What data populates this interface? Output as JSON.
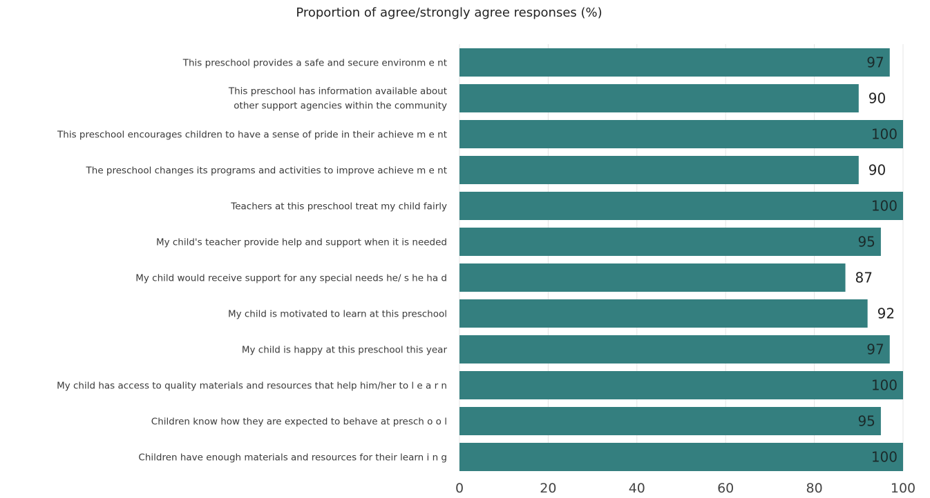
{
  "chart_data": {
    "type": "bar",
    "orientation": "horizontal",
    "title": "Proportion of agree/strongly agree responses (%)",
    "categories": [
      "This preschool provides a safe and secure environm e nt",
      [
        "This preschool has information available about",
        "other support agencies within the community"
      ],
      "This preschool encourages children to have a sense of pride in their achieve m e nt",
      "The preschool changes its programs and activities to improve achieve m e nt",
      "Teachers at this preschool treat my child fairly",
      "My child's teacher provide help and support when it is needed",
      "My child would receive support for any special needs he/ s he ha d",
      "My child is motivated to learn at this preschool",
      "My child is happy at this preschool this year",
      "My child has access to quality materials and resources that help him/her to l e a r n",
      "Children know how they are expected to behave at presch o o l",
      "Children have enough materials and resources for their learn i n g"
    ],
    "values": [
      97,
      90,
      100,
      90,
      100,
      95,
      87,
      92,
      97,
      100,
      95,
      100
    ],
    "xlim": [
      0,
      100
    ],
    "xticks": [
      0,
      20,
      40,
      60,
      80,
      100
    ],
    "grid": true,
    "bar_color": "#347f7f",
    "label_color_inside": "#1b2a2a",
    "label_color_outside": "#222222"
  }
}
